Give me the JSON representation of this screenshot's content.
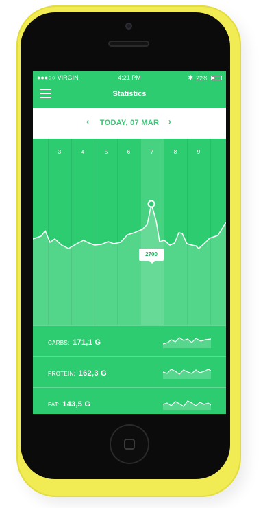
{
  "status_bar": {
    "carrier": "●●●○○ VIRGIN",
    "time": "4:21 PM",
    "battery": "22%",
    "battery_level": 0.22
  },
  "header": {
    "title": "Statistics"
  },
  "date_nav": {
    "prev": "‹",
    "label": "TODAY, 07 MAR",
    "next": "›"
  },
  "chart": {
    "days": [
      "3",
      "4",
      "5",
      "6",
      "7",
      "8",
      "9"
    ],
    "selected_day": "7",
    "selected_value": "2700"
  },
  "macros": [
    {
      "label": "CARBS:",
      "value": "171,1 G"
    },
    {
      "label": "PROTEIN:",
      "value": "162,3 G"
    },
    {
      "label": "FAT:",
      "value": "143,5 G"
    }
  ],
  "colors": {
    "accent": "#2ecc71",
    "phone_body": "#f1ec54"
  }
}
